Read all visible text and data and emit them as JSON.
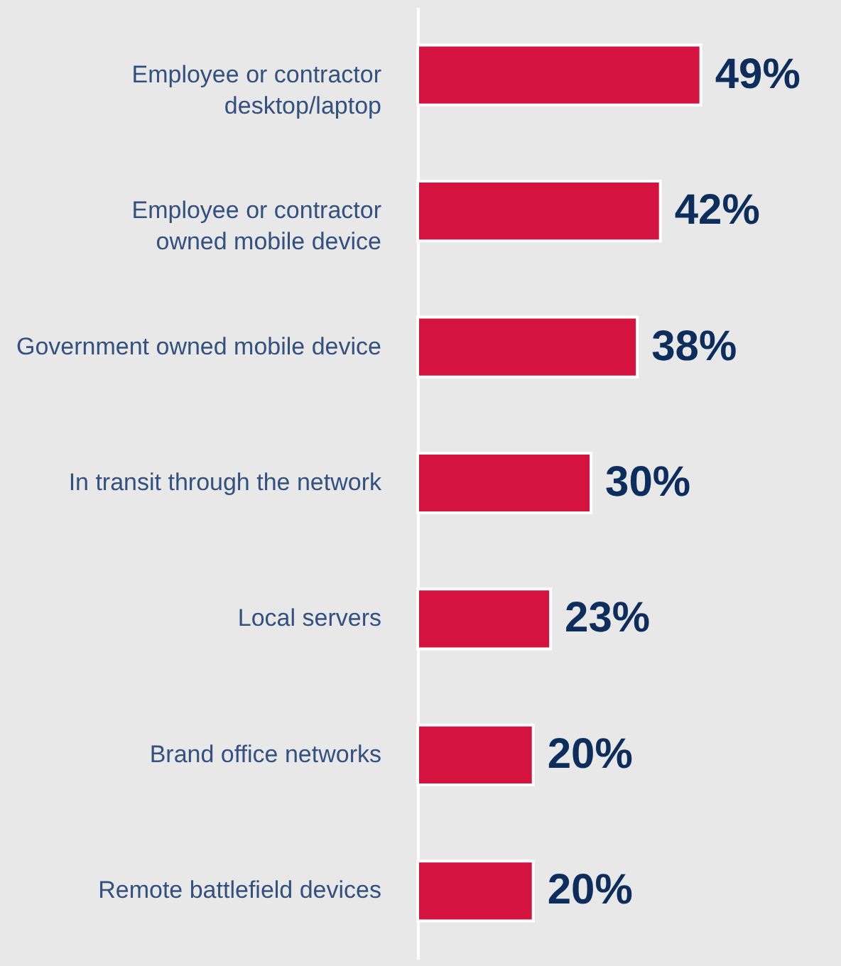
{
  "chart_data": {
    "type": "bar",
    "orientation": "horizontal",
    "categories": [
      "Employee or contractor desktop/laptop",
      "Employee or contractor owned mobile device",
      "Government owned mobile device",
      "In transit through the network",
      "Local servers",
      "Brand office networks",
      "Remote battlefield devices"
    ],
    "values": [
      49,
      42,
      38,
      30,
      23,
      20,
      20
    ],
    "value_labels": [
      "49%",
      "42%",
      "38%",
      "30%",
      "23%",
      "20%",
      "20%"
    ],
    "color": "#d4143f"
  }
}
